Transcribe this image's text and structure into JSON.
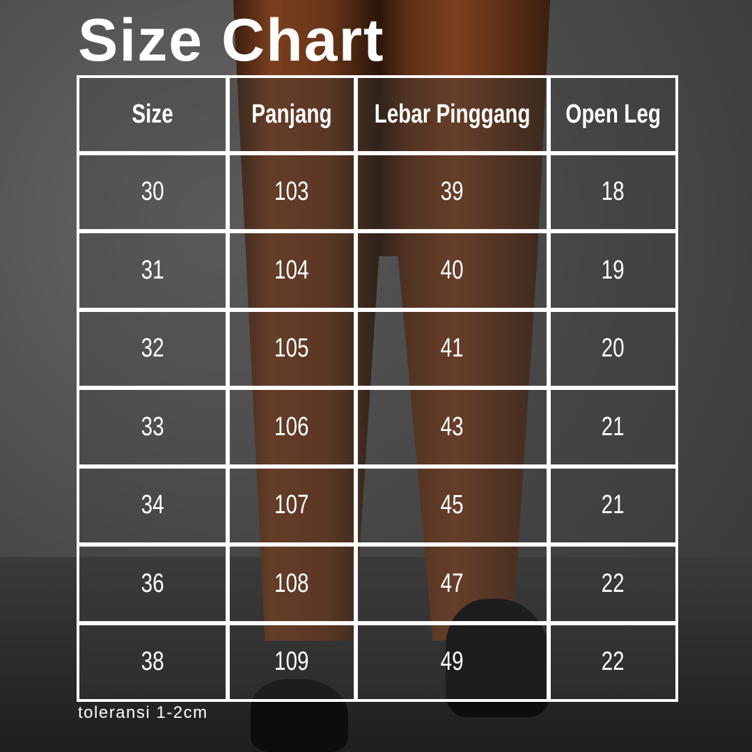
{
  "title": "Size Chart",
  "table": {
    "headers": [
      "Size",
      "Panjang",
      "Lebar Pinggang",
      "Open Leg"
    ],
    "rows": [
      [
        "30",
        "103",
        "39",
        "18"
      ],
      [
        "31",
        "104",
        "40",
        "19"
      ],
      [
        "32",
        "105",
        "41",
        "20"
      ],
      [
        "33",
        "106",
        "43",
        "21"
      ],
      [
        "34",
        "107",
        "45",
        "21"
      ],
      [
        "36",
        "108",
        "47",
        "22"
      ],
      [
        "38",
        "109",
        "49",
        "22"
      ]
    ]
  },
  "note": "toleransi 1-2cm"
}
